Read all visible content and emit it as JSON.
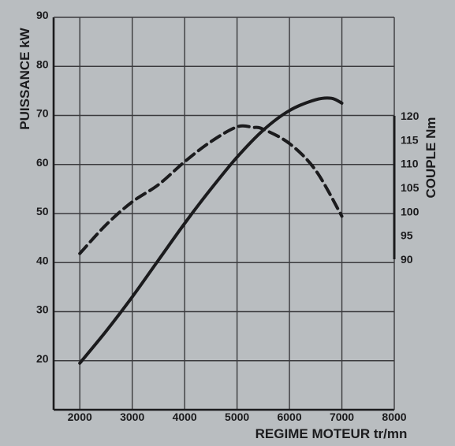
{
  "chart_data": {
    "type": "line",
    "title": "",
    "xlabel": "REGIME MOTEUR tr/mn",
    "ylabel": "PUISSANCE kW",
    "y2label": "COUPLE Nm",
    "xlim": [
      1500,
      8000
    ],
    "ylim": [
      10,
      90
    ],
    "y2lim": [
      90,
      120
    ],
    "grid": true,
    "legend": "none",
    "x_ticks": [
      "2000",
      "3000",
      "4000",
      "5000",
      "6000",
      "7000",
      "8000"
    ],
    "y_ticks": [
      "20",
      "30",
      "40",
      "50",
      "60",
      "70",
      "80",
      "90"
    ],
    "y2_ticks": [
      "90",
      "95",
      "100",
      "105",
      "110",
      "115",
      "120"
    ],
    "series": [
      {
        "style": "solid",
        "axis": "left",
        "x": [
          2000,
          2500,
          3000,
          3500,
          4000,
          4500,
          5000,
          5500,
          6000,
          6500,
          6800,
          7000
        ],
        "y": [
          19.5,
          26,
          33,
          40.5,
          48,
          55,
          61.5,
          67,
          71,
          73.2,
          73.5,
          72.5
        ]
      },
      {
        "style": "dashed",
        "axis": "right",
        "x": [
          2000,
          2500,
          3000,
          3500,
          4000,
          4500,
          5000,
          5300,
          5500,
          6000,
          6500,
          7000
        ],
        "y": [
          91.2,
          97.2,
          102.0,
          105.6,
          110.4,
          114.6,
          117.7,
          117.6,
          117.2,
          114.2,
          108.6,
          99.0
        ]
      }
    ],
    "colors": {
      "background": "#b9bdc0",
      "ink": "#1b1b1d",
      "grid": "#3a3a3d"
    }
  }
}
